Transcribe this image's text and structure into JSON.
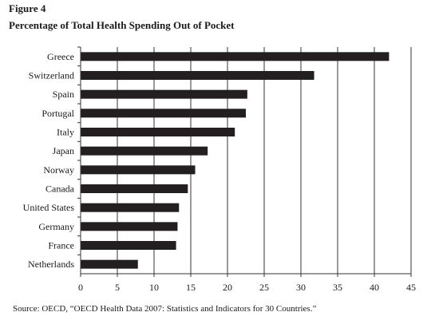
{
  "figure_label": "Figure 4",
  "chart_data": {
    "type": "bar",
    "orientation": "horizontal",
    "title": "Percentage of Total Health Spending Out of Pocket",
    "categories": [
      "Greece",
      "Switzerland",
      "Spain",
      "Portugal",
      "Italy",
      "Japan",
      "Norway",
      "Canada",
      "United States",
      "Germany",
      "France",
      "Netherlands"
    ],
    "values": [
      42,
      31.8,
      22.7,
      22.5,
      21,
      17.3,
      15.6,
      14.6,
      13.4,
      13.2,
      13,
      7.8
    ],
    "xlabel": "",
    "ylabel": "",
    "xlim": [
      0,
      45
    ],
    "xticks": [
      "0",
      "5",
      "10",
      "15",
      "20",
      "25",
      "30",
      "35",
      "40",
      "45"
    ],
    "grid": "vertical",
    "bar_color": "#231f20"
  },
  "source": "Source: OECD, “OECD Health Data 2007: Statistics and Indicators for 30 Countries.”"
}
